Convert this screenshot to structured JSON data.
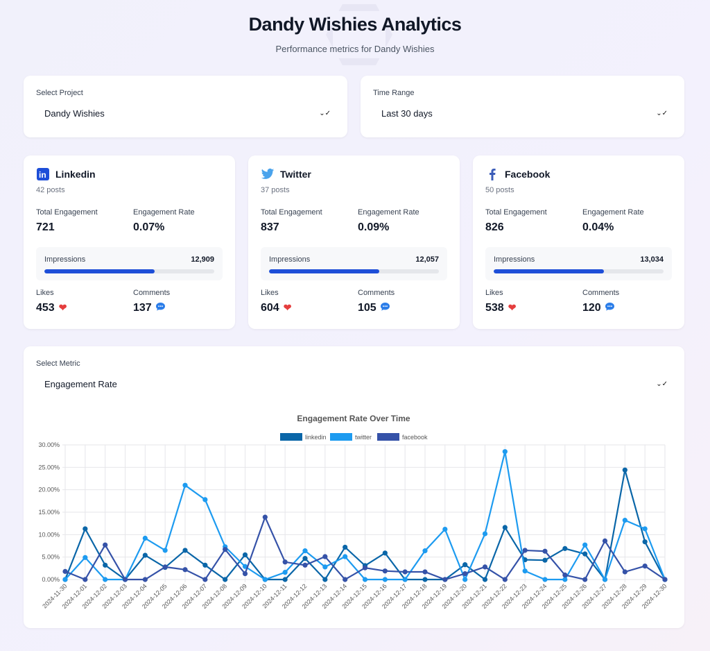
{
  "header": {
    "title": "Dandy Wishies Analytics",
    "subtitle": "Performance metrics for Dandy Wishies"
  },
  "filters": {
    "project": {
      "label": "Select Project",
      "value": "Dandy Wishies"
    },
    "time_range": {
      "label": "Time Range",
      "value": "Last 30 days"
    }
  },
  "labels": {
    "total_engagement": "Total Engagement",
    "engagement_rate": "Engagement Rate",
    "impressions": "Impressions",
    "likes": "Likes",
    "comments": "Comments"
  },
  "platforms": [
    {
      "name": "Linkedin",
      "icon": "linkedin-icon",
      "posts": "42 posts",
      "total_engagement": "721",
      "engagement_rate": "0.07%",
      "impressions": "12,909",
      "impressions_fill_pct": 65,
      "likes": "453",
      "comments": "137"
    },
    {
      "name": "Twitter",
      "icon": "twitter-icon",
      "posts": "37 posts",
      "total_engagement": "837",
      "engagement_rate": "0.09%",
      "impressions": "12,057",
      "impressions_fill_pct": 65,
      "likes": "604",
      "comments": "105"
    },
    {
      "name": "Facebook",
      "icon": "facebook-icon",
      "posts": "50 posts",
      "total_engagement": "826",
      "engagement_rate": "0.04%",
      "impressions": "13,034",
      "impressions_fill_pct": 65,
      "likes": "538",
      "comments": "120"
    }
  ],
  "metric": {
    "label": "Select Metric",
    "value": "Engagement Rate"
  },
  "chart_data": {
    "type": "line",
    "title": "Engagement Rate Over Time",
    "xlabel": "",
    "ylabel": "",
    "ylim": [
      0,
      30
    ],
    "yticks": [
      "0.00%",
      "5.00%",
      "10.00%",
      "15.00%",
      "20.00%",
      "25.00%",
      "30.00%"
    ],
    "grid": true,
    "legend": "top-center",
    "x": [
      "2024-11-30",
      "2024-12-01",
      "2024-12-02",
      "2024-12-03",
      "2024-12-04",
      "2024-12-05",
      "2024-12-06",
      "2024-12-07",
      "2024-12-08",
      "2024-12-09",
      "2024-12-10",
      "2024-12-11",
      "2024-12-12",
      "2024-12-13",
      "2024-12-14",
      "2024-12-15",
      "2024-12-16",
      "2024-12-17",
      "2024-12-18",
      "2024-12-19",
      "2024-12-20",
      "2024-12-21",
      "2024-12-22",
      "2024-12-23",
      "2024-12-24",
      "2024-12-25",
      "2024-12-26",
      "2024-12-27",
      "2024-12-28",
      "2024-12-29",
      "2024-12-30"
    ],
    "series": [
      {
        "name": "linkedin",
        "color": "#0a66a8",
        "values": [
          0,
          11.3,
          3.2,
          0,
          5.4,
          2.7,
          6.5,
          3.2,
          0,
          5.5,
          0,
          0,
          4.7,
          0,
          7.2,
          3.1,
          5.9,
          0,
          0,
          0,
          3.3,
          0,
          11.6,
          4.4,
          4.3,
          6.9,
          5.7,
          0,
          24.4,
          8.4,
          0
        ]
      },
      {
        "name": "twitter",
        "color": "#1d9bf0",
        "values": [
          0,
          4.9,
          0,
          0,
          9.2,
          6.5,
          21.0,
          17.8,
          7.3,
          2.9,
          0,
          1.6,
          6.4,
          2.8,
          5.1,
          0,
          0,
          0,
          6.4,
          11.2,
          0,
          10.2,
          28.5,
          1.9,
          0,
          0,
          7.7,
          0,
          13.2,
          11.3,
          0
        ]
      },
      {
        "name": "facebook",
        "color": "#3552a8",
        "values": [
          1.8,
          0,
          7.7,
          0,
          0,
          2.8,
          2.2,
          0,
          6.7,
          1.3,
          13.9,
          3.9,
          3.2,
          5.1,
          0,
          2.6,
          1.9,
          1.7,
          1.7,
          0,
          1.3,
          2.8,
          0,
          6.5,
          6.3,
          1.0,
          0,
          8.6,
          1.7,
          3.0,
          0
        ]
      }
    ]
  }
}
